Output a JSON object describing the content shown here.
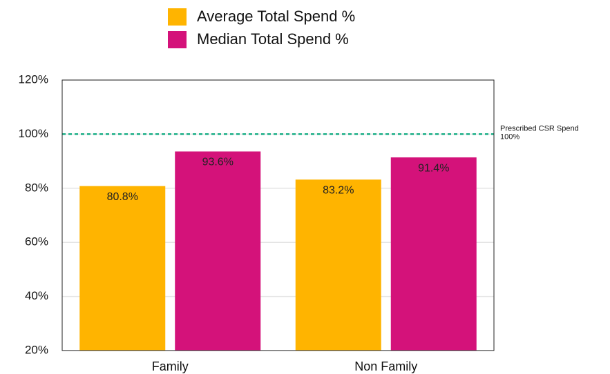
{
  "chart_data": {
    "type": "bar",
    "categories": [
      "Family",
      "Non Family"
    ],
    "series": [
      {
        "name": "Average Total Spend %",
        "color": "#ffb400",
        "values": [
          80.8,
          83.2
        ],
        "value_labels": [
          "80.8%",
          "83.2%"
        ]
      },
      {
        "name": "Median Total Spend %",
        "color": "#d4127a",
        "values": [
          93.6,
          91.4
        ],
        "value_labels": [
          "93.6%",
          "91.4%"
        ]
      }
    ],
    "ylim": [
      20,
      120
    ],
    "yticks": [
      {
        "value": 20,
        "label": "20%"
      },
      {
        "value": 40,
        "label": "40%"
      },
      {
        "value": 60,
        "label": "60%"
      },
      {
        "value": 80,
        "label": "80%"
      },
      {
        "value": 100,
        "label": "100%"
      },
      {
        "value": 120,
        "label": "120%"
      }
    ],
    "grid": true,
    "reference_line": {
      "value": 100,
      "label": "Prescribed CSR Spend",
      "value_label": "100%",
      "color": "#1aae86"
    }
  }
}
